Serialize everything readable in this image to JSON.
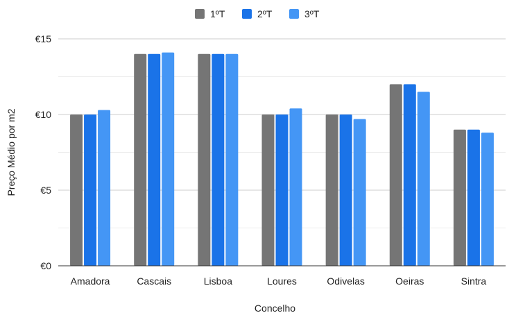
{
  "chart_data": {
    "type": "bar",
    "title": "",
    "xlabel": "Concelho",
    "ylabel": "Preço Médio por m2",
    "categories": [
      "Amadora",
      "Cascais",
      "Lisboa",
      "Loures",
      "Odivelas",
      "Oeiras",
      "Sintra"
    ],
    "series": [
      {
        "name": "1ºT",
        "color": "#757575",
        "values": [
          10,
          14,
          14,
          10,
          10,
          12,
          9
        ]
      },
      {
        "name": "2ºT",
        "color": "#1a73e8",
        "values": [
          10,
          14,
          14,
          10,
          10,
          12,
          9
        ]
      },
      {
        "name": "3ºT",
        "color": "#4496f5",
        "values": [
          10.3,
          14.1,
          14,
          10.4,
          9.7,
          11.5,
          8.8
        ]
      }
    ],
    "ylim": [
      0,
      15
    ],
    "yticks": [
      0,
      5,
      10,
      15
    ],
    "ytick_labels": [
      "€0",
      "€5",
      "€10",
      "€15"
    ],
    "grid": true,
    "legend_position": "top-center"
  }
}
